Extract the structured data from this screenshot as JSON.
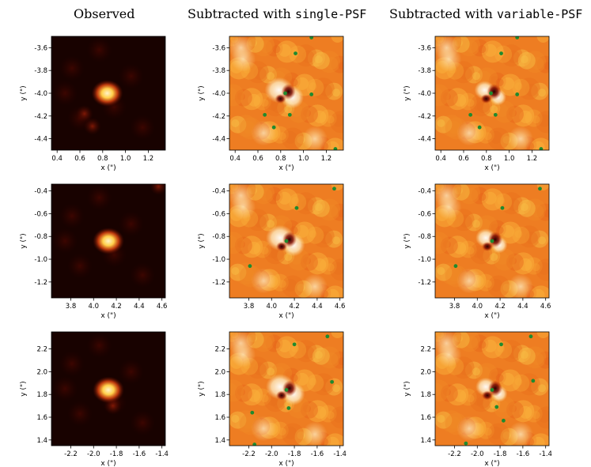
{
  "figure": {
    "columns": [
      {
        "prefix": "Observed",
        "code": ""
      },
      {
        "prefix": "Subtracted with ",
        "code": "single-PSF"
      },
      {
        "prefix": "Subtracted with ",
        "code": "variable-PSF"
      }
    ],
    "xlabel": "x (\")",
    "ylabel": "y (\")"
  },
  "colors": {
    "observed_background": "#180200",
    "residual_background": "#ee7d22",
    "marker": "#1f8a2e",
    "observed_core": "#fff3c8"
  },
  "chart_data": [
    {
      "type": "heatmap",
      "row": 1,
      "xlim": [
        0.35,
        1.35
      ],
      "ylim": [
        -4.5,
        -3.5
      ],
      "xticks": [
        0.4,
        0.6,
        0.8,
        1.0,
        1.2
      ],
      "xticklabels": [
        "0.4",
        "0.6",
        "0.8",
        "1.0",
        "1.2"
      ],
      "yticks": [
        -3.6,
        -3.8,
        -4.0,
        -4.2,
        -4.4
      ],
      "yticklabels": [
        "-3.6",
        "-3.8",
        "-4.0",
        "-4.2",
        "-4.4"
      ],
      "source": {
        "x": 0.84,
        "y": -4.0
      },
      "secondary_sources": [
        {
          "x": 0.64,
          "y": -4.18
        },
        {
          "x": 0.71,
          "y": -4.29
        }
      ],
      "single_psf_markers": [
        {
          "x": 1.07,
          "y": -3.51
        },
        {
          "x": 0.93,
          "y": -3.65
        },
        {
          "x": 0.84,
          "y": -4.0
        },
        {
          "x": 1.07,
          "y": -4.01
        },
        {
          "x": 0.66,
          "y": -4.19
        },
        {
          "x": 0.74,
          "y": -4.3
        },
        {
          "x": 0.88,
          "y": -4.19
        },
        {
          "x": 1.28,
          "y": -4.49
        }
      ],
      "variable_psf_markers": [
        {
          "x": 1.07,
          "y": -3.51
        },
        {
          "x": 0.93,
          "y": -3.65
        },
        {
          "x": 0.84,
          "y": -4.0
        },
        {
          "x": 1.07,
          "y": -4.01
        },
        {
          "x": 0.66,
          "y": -4.19
        },
        {
          "x": 0.74,
          "y": -4.3
        },
        {
          "x": 0.88,
          "y": -4.19
        },
        {
          "x": 1.28,
          "y": -4.49
        }
      ]
    },
    {
      "type": "heatmap",
      "row": 2,
      "xlim": [
        3.63,
        4.63
      ],
      "ylim": [
        -1.34,
        -0.34
      ],
      "xticks": [
        3.8,
        4.0,
        4.2,
        4.4,
        4.6
      ],
      "xticklabels": [
        "3.8",
        "4.0",
        "4.2",
        "4.4",
        "4.6"
      ],
      "yticks": [
        -0.4,
        -0.6,
        -0.8,
        -1.0,
        -1.2
      ],
      "yticklabels": [
        "-0.4",
        "-0.6",
        "-0.8",
        "-1.0",
        "-1.2"
      ],
      "source": {
        "x": 4.13,
        "y": -0.84
      },
      "secondary_sources": [
        {
          "x": 4.57,
          "y": -0.36
        }
      ],
      "single_psf_markers": [
        {
          "x": 4.55,
          "y": -0.38
        },
        {
          "x": 4.22,
          "y": -0.55
        },
        {
          "x": 4.13,
          "y": -0.84
        },
        {
          "x": 3.81,
          "y": -1.06
        }
      ],
      "variable_psf_markers": [
        {
          "x": 4.55,
          "y": -0.38
        },
        {
          "x": 4.22,
          "y": -0.55
        },
        {
          "x": 4.13,
          "y": -0.84
        },
        {
          "x": 3.81,
          "y": -1.06
        }
      ]
    },
    {
      "type": "heatmap",
      "row": 3,
      "xlim": [
        -2.37,
        -1.37
      ],
      "ylim": [
        1.35,
        2.35
      ],
      "xticks": [
        -2.2,
        -2.0,
        -1.8,
        -1.6,
        -1.4
      ],
      "xticklabels": [
        "-2.2",
        "-2.0",
        "-1.8",
        "-1.6",
        "-1.4"
      ],
      "yticks": [
        2.2,
        2.0,
        1.8,
        1.6,
        1.4
      ],
      "yticklabels": [
        "2.2",
        "2.0",
        "1.8",
        "1.6",
        "1.4"
      ],
      "source": {
        "x": -1.87,
        "y": 1.84
      },
      "secondary_sources": [
        {
          "x": -1.83,
          "y": 1.7
        }
      ],
      "single_psf_markers": [
        {
          "x": -1.8,
          "y": 2.24
        },
        {
          "x": -1.51,
          "y": 2.31
        },
        {
          "x": -1.47,
          "y": 1.91
        },
        {
          "x": -1.87,
          "y": 1.84
        },
        {
          "x": -2.17,
          "y": 1.64
        },
        {
          "x": -1.85,
          "y": 1.68
        },
        {
          "x": -2.15,
          "y": 1.36
        }
      ],
      "variable_psf_markers": [
        {
          "x": -1.79,
          "y": 2.24
        },
        {
          "x": -1.53,
          "y": 2.31
        },
        {
          "x": -1.51,
          "y": 1.92
        },
        {
          "x": -1.87,
          "y": 1.84
        },
        {
          "x": -1.83,
          "y": 1.69
        },
        {
          "x": -1.77,
          "y": 1.57
        },
        {
          "x": -2.1,
          "y": 1.37
        }
      ]
    }
  ]
}
